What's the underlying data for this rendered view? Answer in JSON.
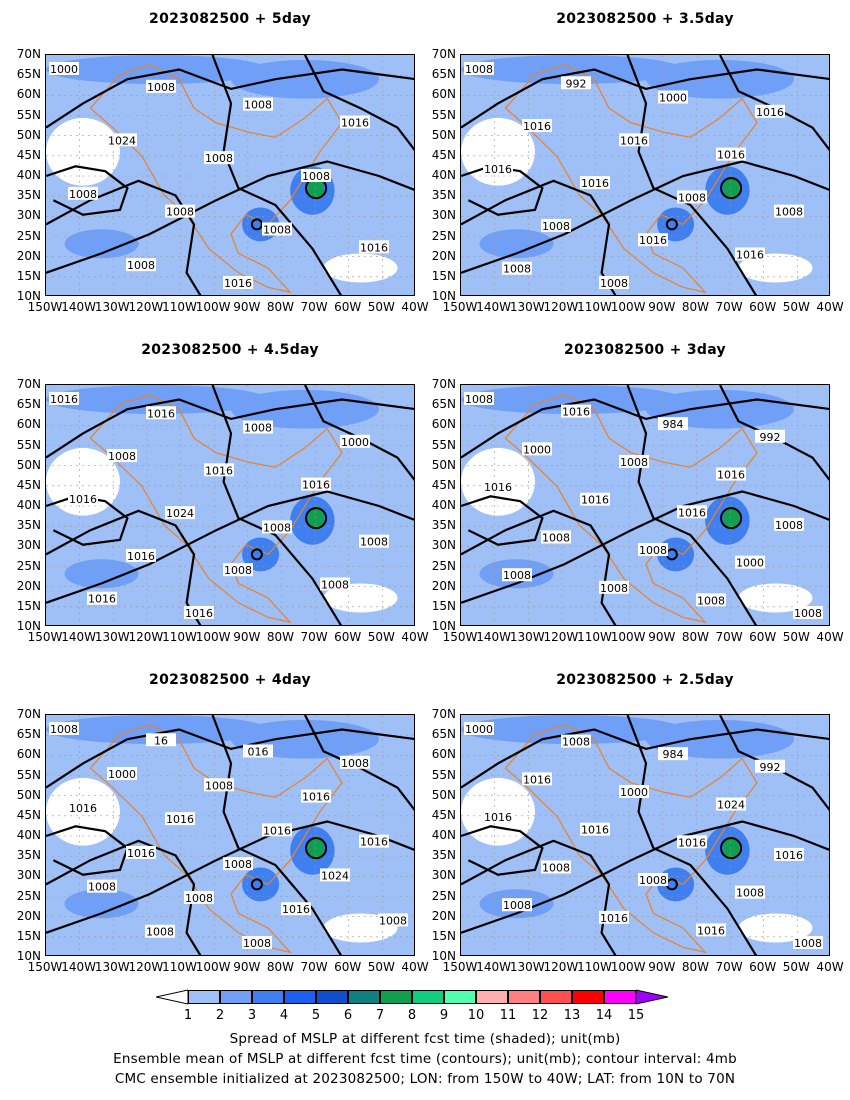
{
  "chart_data": {
    "type": "contour map",
    "colorbar": {
      "levels": [
        "1",
        "2",
        "3",
        "4",
        "5",
        "6",
        "7",
        "8",
        "9",
        "10",
        "11",
        "12",
        "13",
        "14",
        "15"
      ],
      "colors": [
        "#ffffff",
        "#9fbff7",
        "#6f9ff7",
        "#3f7fef",
        "#1f5fef",
        "#0f4fcf",
        "#0f7f7f",
        "#0f9f4f",
        "#0fcf7f",
        "#4fffaf",
        "#ffafaf",
        "#ff7f7f",
        "#ff4f4f",
        "#ff0000",
        "#ff00ff",
        "#9f00ff"
      ]
    },
    "captions": [
      "Spread of MSLP at different fcst time (shaded); unit(mb)",
      "Ensemble mean of MSLP at different fcst time (contours); unit(mb); contour interval: 4mb",
      "CMC ensemble initialized at 2023082500; LON: from 150W to 40W; LAT: from 10N to 70N"
    ],
    "lon_labels": [
      "150W",
      "140W",
      "130W",
      "120W",
      "110W",
      "100W",
      "90W",
      "80W",
      "70W",
      "60W",
      "50W",
      "40W"
    ],
    "lat_labels": [
      "70N",
      "65N",
      "60N",
      "55N",
      "50N",
      "45N",
      "40N",
      "35N",
      "30N",
      "25N",
      "20N",
      "15N",
      "10N"
    ],
    "panels": [
      {
        "title": "2023082500 + 5day",
        "contour_labels": [
          "1000",
          "1008",
          "1008",
          "1016",
          "1024",
          "1008",
          "1008",
          "1008",
          "1008",
          "1008",
          "1016",
          "1008",
          "1016"
        ]
      },
      {
        "title": "2023082500 + 3.5day",
        "contour_labels": [
          "1008",
          "992",
          "1000",
          "1016",
          "1016",
          "1016",
          "1016",
          "1016",
          "1016",
          "1008",
          "1008",
          "1008",
          "1016",
          "1016",
          "1008",
          "1008"
        ]
      },
      {
        "title": "2023082500 + 4.5day",
        "contour_labels": [
          "1016",
          "1016",
          "1008",
          "1000",
          "1008",
          "1016",
          "1016",
          "1016",
          "1024",
          "1008",
          "1008",
          "1016",
          "1008",
          "1008",
          "1016",
          "1016"
        ]
      },
      {
        "title": "2023082500 + 3day",
        "contour_labels": [
          "1008",
          "1016",
          "984",
          "992",
          "1000",
          "1008",
          "1016",
          "1016",
          "1016",
          "1016",
          "1008",
          "1008",
          "1008",
          "1000",
          "1008",
          "1008",
          "1008",
          "1008"
        ]
      },
      {
        "title": "2023082500 + 4day",
        "contour_labels": [
          "1008",
          "16",
          "016",
          "1008",
          "1000",
          "1008",
          "1016",
          "1016",
          "1016",
          "1016",
          "1016",
          "1016",
          "1008",
          "1024",
          "1008",
          "1008",
          "1016",
          "1008",
          "1008",
          "1008"
        ]
      },
      {
        "title": "2023082500 + 2.5day",
        "contour_labels": [
          "1000",
          "1008",
          "984",
          "992",
          "1016",
          "1000",
          "1024",
          "1016",
          "1016",
          "1016",
          "1016",
          "1008",
          "1008",
          "1008",
          "1008",
          "1016",
          "1016",
          "1008"
        ]
      }
    ]
  }
}
